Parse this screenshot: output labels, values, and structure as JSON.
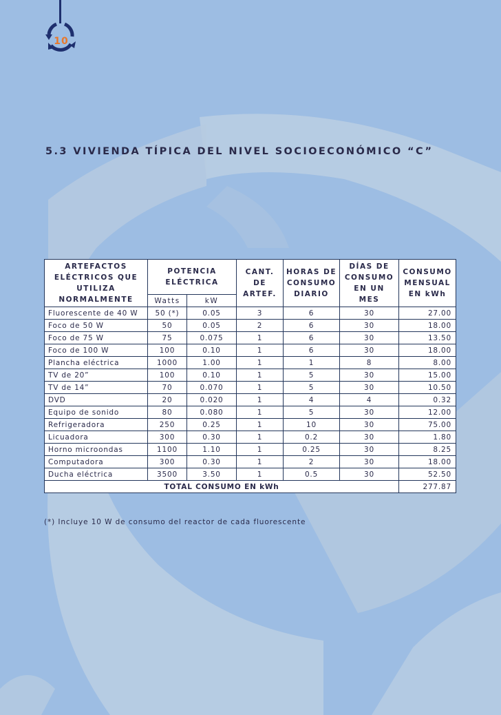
{
  "page": {
    "number": "10",
    "title": "5.3 VIVIENDA TÍPICA DEL NIVEL SOCIOECONÓMICO “C”",
    "footnote": "(*) Incluye 10 W de consumo del reactor de cada fluorescente"
  },
  "colors": {
    "background": "#9dbde3",
    "watermark": "#b9cde2",
    "accent": "#e8782c",
    "badge": "#1e2f6e",
    "table_border": "#22355a"
  },
  "table": {
    "headers": {
      "artefactos": [
        "ARTEFACTOS",
        "ELÉCTRICOS QUE",
        "UTILIZA",
        "NORMALMENTE"
      ],
      "potencia": [
        "POTENCIA",
        "ELÉCTRICA"
      ],
      "watts": "Watts",
      "kw": "kW",
      "cant": [
        "CANT.",
        "DE",
        "ARTEF."
      ],
      "horas": [
        "HORAS DE",
        "CONSUMO",
        "DIARIO"
      ],
      "dias": [
        "DÍAS DE",
        "CONSUMO",
        "EN UN",
        "MES"
      ],
      "consumo": [
        "CONSUMO",
        "MENSUAL",
        "EN kWh"
      ]
    },
    "rows": [
      [
        "Fluorescente de 40 W",
        "50 (*)",
        "0.05",
        "3",
        "6",
        "30",
        "27.00"
      ],
      [
        "Foco de 50 W",
        "50",
        "0.05",
        "2",
        "6",
        "30",
        "18.00"
      ],
      [
        "Foco de 75 W",
        "75",
        "0.075",
        "1",
        "6",
        "30",
        "13.50"
      ],
      [
        "Foco de 100 W",
        "100",
        "0.10",
        "1",
        "6",
        "30",
        "18.00"
      ],
      [
        "Plancha eléctrica",
        "1000",
        "1.00",
        "1",
        "1",
        "8",
        "8.00"
      ],
      [
        "TV de 20”",
        "100",
        "0.10",
        "1",
        "5",
        "30",
        "15.00"
      ],
      [
        "TV de 14”",
        "70",
        "0.070",
        "1",
        "5",
        "30",
        "10.50"
      ],
      [
        "DVD",
        "20",
        "0.020",
        "1",
        "4",
        "4",
        "0.32"
      ],
      [
        "Equipo de sonido",
        "80",
        "0.080",
        "1",
        "5",
        "30",
        "12.00"
      ],
      [
        "Refrigeradora",
        "250",
        "0.25",
        "1",
        "10",
        "30",
        "75.00"
      ],
      [
        "Licuadora",
        "300",
        "0.30",
        "1",
        "0.2",
        "30",
        "1.80"
      ],
      [
        "Horno microondas",
        "1100",
        "1.10",
        "1",
        "0.25",
        "30",
        "8.25"
      ],
      [
        "Computadora",
        "300",
        "0.30",
        "1",
        "2",
        "30",
        "18.00"
      ],
      [
        "Ducha eléctrica",
        "3500",
        "3.50",
        "1",
        "0.5",
        "30",
        "52.50"
      ]
    ],
    "total_label": "TOTAL CONSUMO EN kWh",
    "total_value": "277.87"
  }
}
